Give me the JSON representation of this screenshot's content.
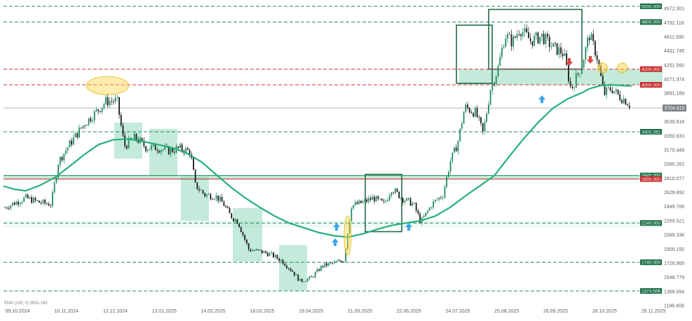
{
  "chart_data": {
    "type": "candlestick",
    "ylim": [
      1188.409,
      5000
    ],
    "x_tick_labels": [
      "09.10.2024",
      "10.11.2024",
      "12.12.2024",
      "13.01.2025",
      "14.02.2025",
      "18.03.2025",
      "19.04.2025",
      "21.05.2025",
      "22.06.2025",
      "24.07.2025",
      "25.08.2025",
      "26.09.2025",
      "28.10.2025",
      "29.11.2025"
    ],
    "y_tick_labels": [
      "4972.301",
      "4792.116",
      "4611.930",
      "4431.745",
      "4251.560",
      "4071.374",
      "3891.189",
      "3530.818",
      "3350.633",
      "3170.448",
      "2990.262",
      "2810.077",
      "2629.892",
      "2449.706",
      "2269.521",
      "2089.336",
      "1909.150",
      "1728.965",
      "1548.779",
      "1368.594",
      "1188.409"
    ],
    "y_tick_values": [
      4972.301,
      4792.116,
      4611.93,
      4431.745,
      4251.56,
      4071.374,
      3891.189,
      3530.818,
      3350.633,
      3170.448,
      2990.262,
      2810.077,
      2629.892,
      2449.706,
      2269.521,
      2089.336,
      1909.15,
      1728.965,
      1548.779,
      1368.594,
      1188.409
    ],
    "levels": [
      {
        "label": "5000.000",
        "value": 5000,
        "color": "#1f8a5b",
        "style": "dashed"
      },
      {
        "label": "4800.000",
        "value": 4800,
        "color": "#1f8a5b",
        "style": "dashed"
      },
      {
        "label": "4200.000",
        "value": 4200,
        "color": "#d32f2f",
        "style": "dashed"
      },
      {
        "label": "4000.000",
        "value": 4000,
        "color": "#d32f2f",
        "style": "dashed"
      },
      {
        "label": "3402.262",
        "value": 3402.262,
        "color": "#1f8a5b",
        "style": "dashed"
      },
      {
        "label": "2845.000",
        "value": 2845,
        "color": "#1f8a5b",
        "style": "solid"
      },
      {
        "label": "2800.000",
        "value": 2800,
        "color": "#d32f2f",
        "style": "solid"
      },
      {
        "label": "2240.000",
        "value": 2240,
        "color": "#1f8a5b",
        "style": "dashed"
      },
      {
        "label": "1740.000",
        "value": 1740,
        "color": "#1f8a5b",
        "style": "dashed"
      },
      {
        "label": "1374.506",
        "value": 1374.506,
        "color": "#1f8a5b",
        "style": "dashed"
      }
    ],
    "current_price": {
      "label": "3704.615",
      "value": 3704.615
    },
    "indicator_label": "EMA (100, 0) 3851.180",
    "ema_points": [
      [
        0,
        2710
      ],
      [
        15,
        2670
      ],
      [
        30,
        2650
      ],
      [
        50,
        2720
      ],
      [
        70,
        2820
      ],
      [
        90,
        2960
      ],
      [
        110,
        3110
      ],
      [
        130,
        3240
      ],
      [
        150,
        3300
      ],
      [
        170,
        3310
      ],
      [
        190,
        3280
      ],
      [
        210,
        3240
      ],
      [
        230,
        3200
      ],
      [
        250,
        3130
      ],
      [
        270,
        3020
      ],
      [
        290,
        2860
      ],
      [
        310,
        2700
      ],
      [
        330,
        2560
      ],
      [
        350,
        2440
      ],
      [
        370,
        2330
      ],
      [
        390,
        2240
      ],
      [
        410,
        2180
      ],
      [
        430,
        2120
      ],
      [
        450,
        2080
      ],
      [
        470,
        2060
      ],
      [
        490,
        2100
      ],
      [
        510,
        2160
      ],
      [
        530,
        2210
      ],
      [
        550,
        2240
      ],
      [
        570,
        2270
      ],
      [
        590,
        2330
      ],
      [
        610,
        2440
      ],
      [
        630,
        2580
      ],
      [
        650,
        2710
      ],
      [
        670,
        2840
      ],
      [
        690,
        3080
      ],
      [
        710,
        3310
      ],
      [
        730,
        3520
      ],
      [
        750,
        3700
      ],
      [
        770,
        3820
      ],
      [
        790,
        3900
      ],
      [
        800,
        3950
      ],
      [
        815,
        3990
      ],
      [
        830,
        4000
      ],
      [
        845,
        3990
      ],
      [
        858,
        3985
      ]
    ],
    "segments": [
      [
        0,
        2430
      ],
      [
        30,
        2560
      ],
      [
        50,
        2500
      ],
      [
        65,
        2480
      ],
      [
        75,
        3020
      ],
      [
        90,
        3240
      ],
      [
        110,
        3500
      ],
      [
        125,
        3640
      ],
      [
        140,
        3790
      ],
      [
        155,
        3800
      ],
      [
        165,
        3220
      ],
      [
        180,
        3330
      ],
      [
        195,
        3200
      ],
      [
        210,
        3200
      ],
      [
        225,
        3160
      ],
      [
        240,
        3190
      ],
      [
        255,
        3150
      ],
      [
        262,
        2720
      ],
      [
        275,
        2600
      ],
      [
        290,
        2580
      ],
      [
        300,
        2490
      ],
      [
        310,
        2330
      ],
      [
        320,
        2260
      ],
      [
        335,
        1900
      ],
      [
        350,
        1880
      ],
      [
        365,
        1840
      ],
      [
        380,
        1760
      ],
      [
        395,
        1620
      ],
      [
        405,
        1500
      ],
      [
        420,
        1540
      ],
      [
        435,
        1690
      ],
      [
        450,
        1730
      ],
      [
        465,
        1770
      ],
      [
        475,
        2460
      ],
      [
        490,
        2500
      ],
      [
        505,
        2560
      ],
      [
        520,
        2480
      ],
      [
        530,
        2680
      ],
      [
        545,
        2550
      ],
      [
        560,
        2480
      ],
      [
        570,
        2250
      ],
      [
        585,
        2480
      ],
      [
        600,
        2600
      ],
      [
        610,
        3020
      ],
      [
        620,
        3250
      ],
      [
        630,
        3720
      ],
      [
        645,
        3640
      ],
      [
        655,
        3380
      ],
      [
        665,
        3950
      ],
      [
        675,
        4200
      ],
      [
        685,
        4640
      ],
      [
        695,
        4540
      ],
      [
        705,
        4720
      ],
      [
        720,
        4560
      ],
      [
        735,
        4620
      ],
      [
        750,
        4480
      ],
      [
        765,
        4400
      ],
      [
        775,
        3940
      ],
      [
        790,
        4260
      ],
      [
        800,
        4640
      ],
      [
        810,
        4380
      ],
      [
        820,
        3880
      ],
      [
        830,
        3960
      ],
      [
        840,
        3860
      ],
      [
        850,
        3800
      ],
      [
        858,
        3720
      ]
    ],
    "x_range": [
      0,
      900
    ]
  },
  "colors": {
    "bull": "#1f8a5b",
    "bear": "#1a1a1a",
    "ema": "#26b07a",
    "zone_fill": "#79d1ad",
    "box_stroke": "#1f6b45",
    "highlight": "#ffd54f",
    "arrow_up": "#3ba5e8",
    "arrow_down": "#e04545"
  },
  "icons": {
    "buy_arrow": "arrow-up-icon",
    "sell_arrow": "arrow-down-icon"
  }
}
